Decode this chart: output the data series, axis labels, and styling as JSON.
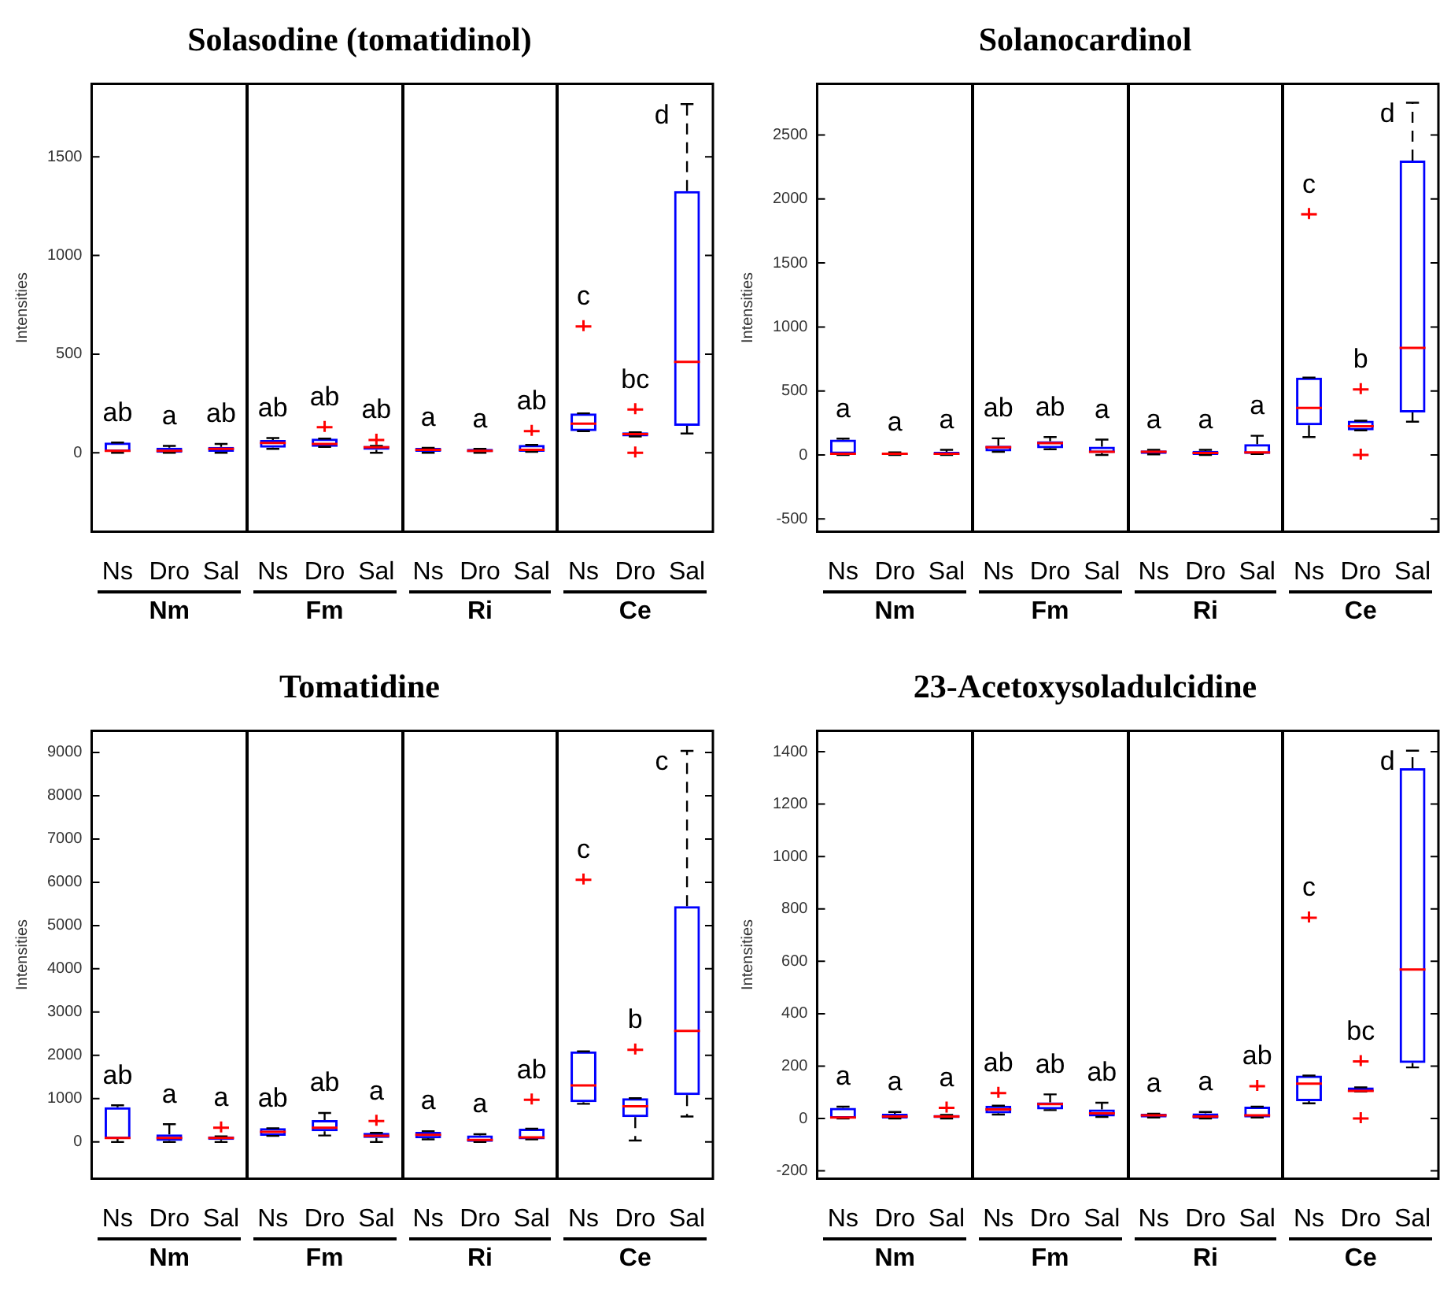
{
  "chart_data": [
    {
      "type": "box",
      "title": "Solasodine (tomatidinol)",
      "ylabel": "Intensities",
      "color": "#0000ff",
      "grid": false,
      "categories": [
        "Ns",
        "Dro",
        "Sal",
        "Ns",
        "Dro",
        "Sal",
        "Ns",
        "Dro",
        "Sal",
        "Ns",
        "Dro",
        "Sal"
      ],
      "ylim": [
        -400,
        1870
      ],
      "yticks": [
        0,
        500,
        1000,
        1500
      ],
      "boxes": [
        {
          "low": 0,
          "q1": 5,
          "median": 10,
          "q3": 52,
          "high": 52
        },
        {
          "low": 0,
          "q1": 0,
          "median": 10,
          "q3": 26,
          "high": 35
        },
        {
          "low": 0,
          "q1": 5,
          "median": 20,
          "q3": 30,
          "high": 45
        },
        {
          "low": 20,
          "q1": 26,
          "median": 50,
          "q3": 65,
          "high": 75
        },
        {
          "low": 30,
          "q1": 30,
          "median": 45,
          "q3": 72,
          "high": 72,
          "outliers": [
            130
          ]
        },
        {
          "low": 0,
          "q1": 15,
          "median": 28,
          "q3": 35,
          "high": 35,
          "outliers": [
            65
          ]
        },
        {
          "low": 0,
          "q1": 5,
          "median": 15,
          "q3": 25,
          "high": 25
        },
        {
          "low": 0,
          "q1": 3,
          "median": 10,
          "q3": 20,
          "high": 20
        },
        {
          "low": 5,
          "q1": 5,
          "median": 15,
          "q3": 40,
          "high": 40,
          "outliers": [
            110
          ]
        },
        {
          "low": 110,
          "q1": 110,
          "median": 148,
          "q3": 200,
          "high": 200,
          "outliers": [
            640
          ]
        },
        {
          "low": 83,
          "q1": 83,
          "median": 95,
          "q3": 104,
          "high": 104,
          "outliers": [
            220,
            0
          ]
        },
        {
          "low": 98,
          "q1": 137,
          "median": 461,
          "q3": 1326,
          "high": 1767
        }
      ],
      "annotations": [
        "ab",
        "a",
        "ab",
        "ab",
        "ab",
        "ab",
        "a",
        "a",
        "ab",
        "c",
        "bc",
        "d",
        "Nm",
        "Fm",
        "Ri",
        "Ce"
      ]
    },
    {
      "type": "box",
      "title": "Solanocardinol",
      "ylabel": "Intensities",
      "color": "#0000ff",
      "grid": false,
      "categories": [
        "Ns",
        "Dro",
        "Sal",
        "Ns",
        "Dro",
        "Sal",
        "Ns",
        "Dro",
        "Sal",
        "Ns",
        "Dro",
        "Sal"
      ],
      "ylim": [
        -600,
        2900
      ],
      "yticks": [
        -500,
        0,
        500,
        1000,
        1500,
        2000,
        2500
      ],
      "boxes": [
        {
          "low": 0,
          "q1": 8,
          "median": 10,
          "q3": 120,
          "high": 128
        },
        {
          "low": 0,
          "q1": 0,
          "median": 10,
          "q3": 15,
          "high": 20
        },
        {
          "low": 0,
          "q1": 0,
          "median": 10,
          "q3": 25,
          "high": 40
        },
        {
          "low": 25,
          "q1": 28,
          "median": 60,
          "q3": 72,
          "high": 130
        },
        {
          "low": 45,
          "q1": 52,
          "median": 92,
          "q3": 108,
          "high": 140
        },
        {
          "low": 0,
          "q1": 16,
          "median": 24,
          "q3": 64,
          "high": 120
        },
        {
          "low": 5,
          "q1": 8,
          "median": 25,
          "q3": 36,
          "high": 40
        },
        {
          "low": 0,
          "q1": 0,
          "median": 15,
          "q3": 32,
          "high": 40
        },
        {
          "low": 8,
          "q1": 8,
          "median": 20,
          "q3": 84,
          "high": 150
        },
        {
          "low": 140,
          "q1": 232,
          "median": 368,
          "q3": 604,
          "high": 604,
          "outliers": [
            1880
          ]
        },
        {
          "low": 192,
          "q1": 192,
          "median": 224,
          "q3": 268,
          "high": 268,
          "outliers": [
            512,
            0
          ]
        },
        {
          "low": 260,
          "q1": 332,
          "median": 836,
          "q3": 2300,
          "high": 2752
        }
      ],
      "annotations": [
        "a",
        "a",
        "a",
        "ab",
        "ab",
        "a",
        "a",
        "a",
        "a",
        "c",
        "b",
        "d",
        "Nm",
        "Fm",
        "Ri",
        "Ce"
      ]
    },
    {
      "type": "box",
      "title": "Tomatidine",
      "ylabel": "Intensities",
      "color": "#0000ff",
      "grid": false,
      "categories": [
        "Ns",
        "Dro",
        "Sal",
        "Ns",
        "Dro",
        "Sal",
        "Ns",
        "Dro",
        "Sal",
        "Ns",
        "Dro",
        "Sal"
      ],
      "ylim": [
        -850,
        9500
      ],
      "yticks": [
        0,
        1000,
        2000,
        3000,
        4000,
        5000,
        6000,
        7000,
        8000,
        9000
      ],
      "boxes": [
        {
          "low": 0,
          "q1": 70,
          "median": 94,
          "q3": 800,
          "high": 847
        },
        {
          "low": 0,
          "q1": 24,
          "median": 94,
          "q3": 176,
          "high": 412
        },
        {
          "low": 0,
          "q1": 47,
          "median": 94,
          "q3": 130,
          "high": 130,
          "outliers": [
            330
          ]
        },
        {
          "low": 141,
          "q1": 141,
          "median": 235,
          "q3": 318,
          "high": 318
        },
        {
          "low": 150,
          "q1": 247,
          "median": 330,
          "q3": 506,
          "high": 670
        },
        {
          "low": 0,
          "q1": 94,
          "median": 141,
          "q3": 212,
          "high": 212,
          "outliers": [
            482
          ]
        },
        {
          "low": 60,
          "q1": 82,
          "median": 165,
          "q3": 235,
          "high": 250
        },
        {
          "low": 0,
          "q1": 0,
          "median": 47,
          "q3": 153,
          "high": 180
        },
        {
          "low": 59,
          "q1": 59,
          "median": 106,
          "q3": 306,
          "high": 306,
          "outliers": [
            976
          ]
        },
        {
          "low": 882,
          "q1": 918,
          "median": 1306,
          "q3": 2094,
          "high": 2094,
          "outliers": [
            6059
          ]
        },
        {
          "low": 35,
          "q1": 576,
          "median": 824,
          "q3": 1012,
          "high": 1012,
          "outliers": [
            2129
          ]
        },
        {
          "low": 588,
          "q1": 1082,
          "median": 2565,
          "q3": 5447,
          "high": 9035
        }
      ],
      "annotations": [
        "ab",
        "a",
        "a",
        "ab",
        "ab",
        "a",
        "a",
        "a",
        "ab",
        "c",
        "b",
        "c",
        "Nm",
        "Fm",
        "Ri",
        "Ce"
      ]
    },
    {
      "type": "box",
      "title": "23-Acetoxysoladulcidine",
      "ylabel": "Intensities",
      "color": "#0000ff",
      "grid": false,
      "categories": [
        "Ns",
        "Dro",
        "Sal",
        "Ns",
        "Dro",
        "Sal",
        "Ns",
        "Dro",
        "Sal",
        "Ns",
        "Dro",
        "Sal"
      ],
      "ylim": [
        -230,
        1480
      ],
      "yticks": [
        -200,
        0,
        200,
        400,
        600,
        800,
        1000,
        1200,
        1400
      ],
      "boxes": [
        {
          "low": 0,
          "q1": 0,
          "median": 4,
          "q3": 41,
          "high": 45
        },
        {
          "low": 0,
          "q1": 0,
          "median": 8,
          "q3": 18,
          "high": 25
        },
        {
          "low": 0,
          "q1": 2,
          "median": 8,
          "q3": 14,
          "high": 14,
          "outliers": [
            41
          ]
        },
        {
          "low": 15,
          "q1": 20,
          "median": 35,
          "q3": 49,
          "high": 49,
          "outliers": [
            97
          ]
        },
        {
          "low": 32,
          "q1": 35,
          "median": 55,
          "q3": 62,
          "high": 92
        },
        {
          "low": 6,
          "q1": 8,
          "median": 20,
          "q3": 35,
          "high": 60
        },
        {
          "low": 4,
          "q1": 4,
          "median": 12,
          "q3": 18,
          "high": 18
        },
        {
          "low": 0,
          "q1": 0,
          "median": 8,
          "q3": 20,
          "high": 25
        },
        {
          "low": 4,
          "q1": 4,
          "median": 12,
          "q3": 45,
          "high": 45,
          "outliers": [
            123
          ]
        },
        {
          "low": 58,
          "q1": 66,
          "median": 133,
          "q3": 164,
          "high": 164,
          "outliers": [
            766
          ]
        },
        {
          "low": 103,
          "q1": 103,
          "median": 105,
          "q3": 119,
          "high": 119,
          "outliers": [
            218,
            0
          ]
        },
        {
          "low": 195,
          "q1": 212,
          "median": 569,
          "q3": 1337,
          "high": 1404
        }
      ],
      "annotations": [
        "a",
        "a",
        "a",
        "ab",
        "ab",
        "ab",
        "a",
        "a",
        "ab",
        "c",
        "bc",
        "d",
        "Nm",
        "Fm",
        "Ri",
        "Ce"
      ]
    }
  ]
}
